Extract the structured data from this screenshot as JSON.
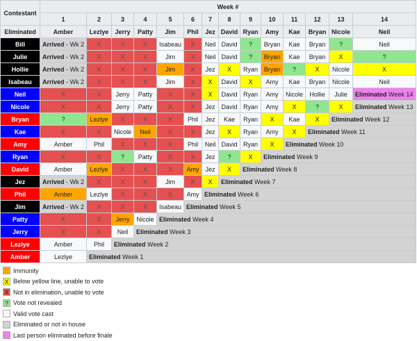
{
  "header": {
    "contestant": "Contestant",
    "week_label": "Week #",
    "eliminated_label": "Eliminated",
    "weeks": [
      "1",
      "2",
      "3",
      "4",
      "5",
      "6",
      "7",
      "8",
      "9",
      "10",
      "11",
      "12",
      "13",
      "14"
    ],
    "evicted": [
      "Amber",
      "Lezlye",
      "Jerry",
      "Patty",
      "Jim",
      "Phil",
      "Jez",
      "David",
      "Ryan",
      "Amy",
      "Kae",
      "Bryan",
      "Nicole",
      "Neil"
    ]
  },
  "rows": [
    {
      "name": "Bill",
      "color": "black",
      "cells": [
        {
          "t": "Arrived - Wk 2",
          "c": "arrived"
        },
        {
          "t": "X",
          "c": "red"
        },
        {
          "t": "X",
          "c": "red"
        },
        {
          "t": "X",
          "c": "red"
        },
        {
          "t": "Isabeau",
          "c": "white"
        },
        {
          "t": "X",
          "c": "red"
        },
        {
          "t": "Neil",
          "c": "white"
        },
        {
          "t": "David",
          "c": "white"
        },
        {
          "t": "?",
          "c": "green"
        },
        {
          "t": "Bryan",
          "c": "white"
        },
        {
          "t": "Kae",
          "c": "white"
        },
        {
          "t": "Bryan",
          "c": "white"
        },
        {
          "t": "?",
          "c": "green"
        },
        {
          "t": "Neil",
          "c": "white"
        }
      ]
    },
    {
      "name": "Julie",
      "color": "black",
      "cells": [
        {
          "t": "Arrived - Wk 2",
          "c": "arrived"
        },
        {
          "t": "X",
          "c": "red"
        },
        {
          "t": "X",
          "c": "red"
        },
        {
          "t": "X",
          "c": "red"
        },
        {
          "t": "Jim",
          "c": "white"
        },
        {
          "t": "X",
          "c": "red"
        },
        {
          "t": "Neil",
          "c": "white"
        },
        {
          "t": "David",
          "c": "white"
        },
        {
          "t": "?",
          "c": "green"
        },
        {
          "t": "Bryan",
          "c": "orange"
        },
        {
          "t": "Kae",
          "c": "white"
        },
        {
          "t": "Bryan",
          "c": "white"
        },
        {
          "t": "X",
          "c": "yellow"
        },
        {
          "t": "?",
          "c": "green"
        }
      ]
    },
    {
      "name": "Hollie",
      "color": "black",
      "cells": [
        {
          "t": "Arrived - Wk 2",
          "c": "arrived"
        },
        {
          "t": "X",
          "c": "red"
        },
        {
          "t": "X",
          "c": "red"
        },
        {
          "t": "X",
          "c": "red"
        },
        {
          "t": "Jim",
          "c": "orange"
        },
        {
          "t": "X",
          "c": "red"
        },
        {
          "t": "Jez",
          "c": "white"
        },
        {
          "t": "X",
          "c": "yellow"
        },
        {
          "t": "Ryan",
          "c": "white"
        },
        {
          "t": "Bryan",
          "c": "orange"
        },
        {
          "t": "?",
          "c": "green"
        },
        {
          "t": "X",
          "c": "yellow"
        },
        {
          "t": "Nicole",
          "c": "white"
        },
        {
          "t": "X",
          "c": "yellow"
        }
      ]
    },
    {
      "name": "Isabeau",
      "color": "black",
      "cells": [
        {
          "t": "Arrived - Wk 2",
          "c": "arrived"
        },
        {
          "t": "X",
          "c": "red"
        },
        {
          "t": "X",
          "c": "red"
        },
        {
          "t": "X",
          "c": "red"
        },
        {
          "t": "Jim",
          "c": "white"
        },
        {
          "t": "X",
          "c": "red"
        },
        {
          "t": "X",
          "c": "yellow"
        },
        {
          "t": "David",
          "c": "white"
        },
        {
          "t": "X",
          "c": "yellow"
        },
        {
          "t": "Amy",
          "c": "white"
        },
        {
          "t": "Kae",
          "c": "white"
        },
        {
          "t": "Bryan",
          "c": "white"
        },
        {
          "t": "Nicole",
          "c": "white"
        },
        {
          "t": "Neil",
          "c": "white"
        }
      ]
    },
    {
      "name": "Neil",
      "color": "blue",
      "cells": [
        {
          "t": "X",
          "c": "red"
        },
        {
          "t": "X",
          "c": "red"
        },
        {
          "t": "Jerry",
          "c": "white"
        },
        {
          "t": "Patty",
          "c": "white"
        },
        {
          "t": "X",
          "c": "red"
        },
        {
          "t": "X",
          "c": "red"
        },
        {
          "t": "X",
          "c": "yellow"
        },
        {
          "t": "David",
          "c": "white"
        },
        {
          "t": "Ryan",
          "c": "white"
        },
        {
          "t": "Amy",
          "c": "white"
        },
        {
          "t": "Nicole",
          "c": "white"
        },
        {
          "t": "Hollie",
          "c": "white"
        },
        {
          "t": "Julie",
          "c": "white"
        }
      ],
      "elim": {
        "bold": "Eliminated",
        "rest": " Week 14",
        "violet": true
      }
    },
    {
      "name": "Nicole",
      "color": "blue",
      "cells": [
        {
          "t": "X",
          "c": "red"
        },
        {
          "t": "X",
          "c": "red"
        },
        {
          "t": "Jerry",
          "c": "white"
        },
        {
          "t": "Patty",
          "c": "white"
        },
        {
          "t": "X",
          "c": "red"
        },
        {
          "t": "X",
          "c": "red"
        },
        {
          "t": "Jez",
          "c": "white"
        },
        {
          "t": "David",
          "c": "white"
        },
        {
          "t": "Ryan",
          "c": "white"
        },
        {
          "t": "Amy",
          "c": "white"
        },
        {
          "t": "X",
          "c": "yellow"
        },
        {
          "t": "?",
          "c": "green"
        },
        {
          "t": "X",
          "c": "yellow"
        }
      ],
      "elim": {
        "bold": "Eliminated",
        "rest": " Week 13"
      }
    },
    {
      "name": "Bryan",
      "color": "red",
      "cells": [
        {
          "t": "?",
          "c": "green"
        },
        {
          "t": "Lezlye",
          "c": "orange"
        },
        {
          "t": "X",
          "c": "red"
        },
        {
          "t": "X",
          "c": "red"
        },
        {
          "t": "X",
          "c": "red"
        },
        {
          "t": "Phil",
          "c": "white"
        },
        {
          "t": "Jez",
          "c": "white"
        },
        {
          "t": "Kae",
          "c": "white"
        },
        {
          "t": "Ryan",
          "c": "white"
        },
        {
          "t": "X",
          "c": "yellow"
        },
        {
          "t": "Kae",
          "c": "white"
        },
        {
          "t": "X",
          "c": "yellow"
        }
      ],
      "elim": {
        "bold": "Eliminated",
        "rest": " Week 12"
      }
    },
    {
      "name": "Kae",
      "color": "blue",
      "cells": [
        {
          "t": "X",
          "c": "red"
        },
        {
          "t": "X",
          "c": "red"
        },
        {
          "t": "Nicole",
          "c": "white"
        },
        {
          "t": "Neil",
          "c": "orange"
        },
        {
          "t": "X",
          "c": "red"
        },
        {
          "t": "X",
          "c": "red"
        },
        {
          "t": "Jez",
          "c": "white"
        },
        {
          "t": "X",
          "c": "yellow"
        },
        {
          "t": "Ryan",
          "c": "white"
        },
        {
          "t": "Amy",
          "c": "white"
        },
        {
          "t": "X",
          "c": "yellow"
        }
      ],
      "elim": {
        "bold": "Eliminated",
        "rest": " Week 11"
      }
    },
    {
      "name": "Amy",
      "color": "red",
      "cells": [
        {
          "t": "Amber",
          "c": "white"
        },
        {
          "t": "Phil",
          "c": "white"
        },
        {
          "t": "X",
          "c": "red"
        },
        {
          "t": "X",
          "c": "red"
        },
        {
          "t": "X",
          "c": "red"
        },
        {
          "t": "Phil",
          "c": "white"
        },
        {
          "t": "Neil",
          "c": "white"
        },
        {
          "t": "David",
          "c": "white"
        },
        {
          "t": "Ryan",
          "c": "white"
        },
        {
          "t": "X",
          "c": "yellow"
        }
      ],
      "elim": {
        "bold": "Eliminated",
        "rest": " Week 10"
      }
    },
    {
      "name": "Ryan",
      "color": "blue",
      "cells": [
        {
          "t": "X",
          "c": "red"
        },
        {
          "t": "X",
          "c": "red"
        },
        {
          "t": "?",
          "c": "green"
        },
        {
          "t": "Patty",
          "c": "white"
        },
        {
          "t": "X",
          "c": "red"
        },
        {
          "t": "X",
          "c": "red"
        },
        {
          "t": "Jez",
          "c": "white"
        },
        {
          "t": "?",
          "c": "green"
        },
        {
          "t": "X",
          "c": "yellow"
        }
      ],
      "elim": {
        "bold": "Eliminated",
        "rest": " Week 9"
      }
    },
    {
      "name": "David",
      "color": "red",
      "cells": [
        {
          "t": "Amber",
          "c": "white"
        },
        {
          "t": "Lezlye",
          "c": "orange"
        },
        {
          "t": "X",
          "c": "red"
        },
        {
          "t": "X",
          "c": "red"
        },
        {
          "t": "X",
          "c": "red"
        },
        {
          "t": "Amy",
          "c": "orange"
        },
        {
          "t": "Jez",
          "c": "white"
        },
        {
          "t": "X",
          "c": "yellow"
        }
      ],
      "elim": {
        "bold": "Eliminated",
        "rest": " Week 8"
      }
    },
    {
      "name": "Jez",
      "color": "black",
      "cells": [
        {
          "t": "Arrived - Wk 2",
          "c": "arrived"
        },
        {
          "t": "X",
          "c": "red"
        },
        {
          "t": "X",
          "c": "red"
        },
        {
          "t": "X",
          "c": "red"
        },
        {
          "t": "Jim",
          "c": "white"
        },
        {
          "t": "X",
          "c": "red"
        },
        {
          "t": "X",
          "c": "yellow"
        }
      ],
      "elim": {
        "bold": "Eliminated",
        "rest": " Week 7"
      }
    },
    {
      "name": "Phil",
      "color": "red",
      "cells": [
        {
          "t": "Amber",
          "c": "orange"
        },
        {
          "t": "Lezlye",
          "c": "white"
        },
        {
          "t": "X",
          "c": "red"
        },
        {
          "t": "X",
          "c": "red"
        },
        {
          "t": "X",
          "c": "red"
        },
        {
          "t": "Amy",
          "c": "white"
        }
      ],
      "elim": {
        "bold": "Eliminated",
        "rest": " Week 6"
      }
    },
    {
      "name": "Jim",
      "color": "black",
      "cells": [
        {
          "t": "Arrived - Wk 2",
          "c": "arrived"
        },
        {
          "t": "X",
          "c": "red"
        },
        {
          "t": "X",
          "c": "red"
        },
        {
          "t": "X",
          "c": "red"
        },
        {
          "t": "Isabeau",
          "c": "white"
        }
      ],
      "elim": {
        "bold": "Eliminated",
        "rest": " Week 5"
      }
    },
    {
      "name": "Patty",
      "color": "blue",
      "cells": [
        {
          "t": "X",
          "c": "red"
        },
        {
          "t": "X",
          "c": "red"
        },
        {
          "t": "Jerry",
          "c": "orange"
        },
        {
          "t": "Nicole",
          "c": "white"
        }
      ],
      "elim": {
        "bold": "Eliminated",
        "rest": " Week 4"
      }
    },
    {
      "name": "Jerry",
      "color": "blue",
      "cells": [
        {
          "t": "X",
          "c": "red"
        },
        {
          "t": "X",
          "c": "red"
        },
        {
          "t": "Neil",
          "c": "white"
        }
      ],
      "elim": {
        "bold": "Eliminated",
        "rest": " Week 3"
      }
    },
    {
      "name": "Lezlye",
      "color": "red",
      "cells": [
        {
          "t": "Amber",
          "c": "white"
        },
        {
          "t": "Phil",
          "c": "white"
        }
      ],
      "elim": {
        "bold": "Eliminated",
        "rest": " Week 2"
      }
    },
    {
      "name": "Amber",
      "color": "red",
      "cells": [
        {
          "t": "Lezlye",
          "c": "white"
        }
      ],
      "elim": {
        "bold": "Eliminated",
        "rest": " Week 1"
      }
    }
  ],
  "legend": [
    {
      "label": "Immunity",
      "swatch": "orange",
      "mark": ""
    },
    {
      "label": "Below yellow line, unable to vote",
      "swatch": "yellow",
      "mark": "X"
    },
    {
      "label": "Not in elimination, unable to vote",
      "swatch": "red",
      "mark": "X"
    },
    {
      "label": "Vote not revealed",
      "swatch": "green",
      "mark": "?"
    },
    {
      "label": "Valid vote cast",
      "swatch": "white",
      "mark": ""
    },
    {
      "label": "Eliminated or not in house",
      "swatch": "gray",
      "mark": ""
    },
    {
      "label": "Last person eliminated before finale",
      "swatch": "violet",
      "mark": ""
    }
  ],
  "colors": {
    "black": "#000000",
    "blue": "#0000ff",
    "red_name": "#ff0000",
    "red": "#e55050",
    "white": "#f8f9fa",
    "yellow": "#ffff00",
    "orange": "#ffa500",
    "green": "#8fe68f",
    "gray": "#d3d3d3",
    "violet": "#ee82ee"
  }
}
